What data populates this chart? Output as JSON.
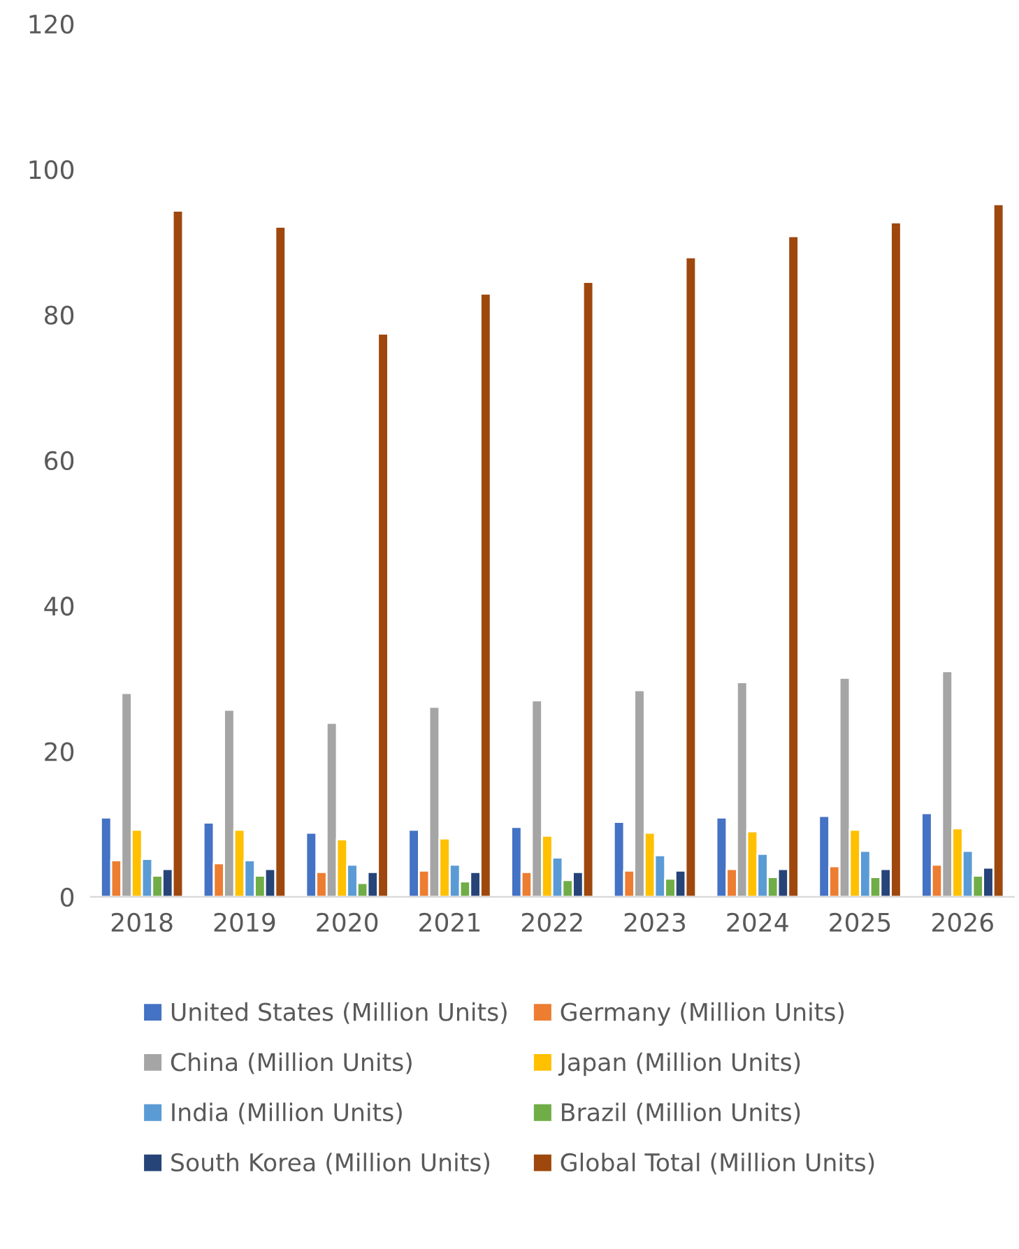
{
  "chart_data": {
    "type": "bar",
    "categories": [
      "2018",
      "2019",
      "2020",
      "2021",
      "2022",
      "2023",
      "2024",
      "2025",
      "2026"
    ],
    "series": [
      {
        "name": "United States (Million Units)",
        "color": "#4472c4",
        "values": [
          10.9,
          10.2,
          8.8,
          9.2,
          9.6,
          10.3,
          10.9,
          11.1,
          11.5
        ]
      },
      {
        "name": "Germany (Million Units)",
        "color": "#ed7d31",
        "values": [
          5.0,
          4.6,
          3.4,
          3.6,
          3.4,
          3.6,
          3.8,
          4.2,
          4.4
        ]
      },
      {
        "name": "China (Million Units)",
        "color": "#a5a5a5",
        "values": [
          28.0,
          25.7,
          23.9,
          26.1,
          27.0,
          28.4,
          29.5,
          30.1,
          31.0
        ]
      },
      {
        "name": "Japan (Million Units)",
        "color": "#ffc000",
        "values": [
          9.2,
          9.2,
          7.9,
          8.0,
          8.4,
          8.8,
          9.0,
          9.2,
          9.4
        ]
      },
      {
        "name": "India (Million Units)",
        "color": "#5b9bd5",
        "values": [
          5.2,
          5.0,
          4.4,
          4.4,
          5.4,
          5.7,
          5.9,
          6.3,
          6.3
        ]
      },
      {
        "name": "Brazil (Million Units)",
        "color": "#70ad47",
        "values": [
          2.9,
          2.9,
          1.9,
          2.1,
          2.3,
          2.5,
          2.7,
          2.7,
          2.9
        ]
      },
      {
        "name": "South Korea (Million Units)",
        "color": "#264478",
        "values": [
          3.8,
          3.8,
          3.4,
          3.4,
          3.4,
          3.6,
          3.8,
          3.8,
          4.0
        ]
      },
      {
        "name": "Global Total (Million Units)",
        "color": "#9e480e",
        "values": [
          94.3,
          92.1,
          77.4,
          82.9,
          84.5,
          87.9,
          90.8,
          92.7,
          95.2
        ]
      }
    ],
    "ylim": [
      0,
      120
    ],
    "yticks": [
      0,
      20,
      40,
      60,
      80,
      100,
      120
    ],
    "legend": "bottom",
    "grid": false
  }
}
